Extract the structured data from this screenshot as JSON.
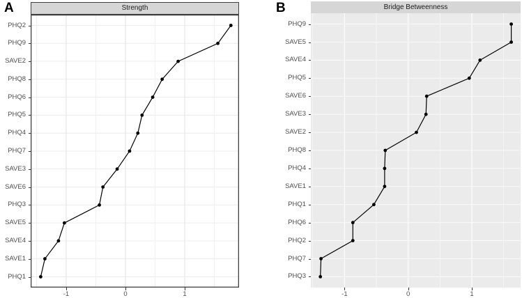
{
  "figure_tags": {
    "panel_a": "A",
    "panel_b": "B"
  },
  "chart_data": [
    {
      "id": "strength",
      "type": "line",
      "title": "Strength",
      "orientation": "horizontal-dot-plot",
      "categories_top_to_bottom": [
        "PHQ2",
        "PHQ9",
        "SAVE2",
        "PHQ8",
        "PHQ6",
        "PHQ5",
        "PHQ4",
        "PHQ7",
        "SAVE3",
        "SAVE6",
        "PHQ3",
        "SAVE5",
        "SAVE4",
        "SAVE1",
        "PHQ1"
      ],
      "values": [
        1.78,
        1.56,
        0.89,
        0.62,
        0.46,
        0.28,
        0.21,
        0.07,
        -0.14,
        -0.38,
        -0.44,
        -1.03,
        -1.13,
        -1.36,
        -1.43
      ],
      "xlabel": "",
      "ylabel": "",
      "xticks": [
        -1,
        0,
        1
      ],
      "xtick_labels": [
        "-1",
        "0",
        "1"
      ],
      "xminor": [
        -1.5,
        -0.5,
        0.5,
        1.5
      ],
      "xlim": [
        -1.6,
        1.918
      ],
      "grid": true,
      "legend": "none",
      "theme": {
        "panel_bg": "#ffffff",
        "panel_border": "#404040",
        "grid_major_v": "#e4e4e4",
        "grid_minor_v": "#f1f1f1",
        "grid_row": "#ececec",
        "strip_bg": "#d6d6d6",
        "strip_text": "#1a1a1a",
        "axis_text": "#4d4d4d",
        "tick_color": "#333333",
        "line_color": "#000000",
        "point_color": "#000000"
      }
    },
    {
      "id": "bridge-betweenness",
      "type": "line",
      "title": "Bridge Betweenness",
      "orientation": "horizontal-dot-plot",
      "categories_top_to_bottom": [
        "PHQ9",
        "SAVE5",
        "SAVE4",
        "PHQ5",
        "SAVE6",
        "SAVE3",
        "SAVE2",
        "PHQ8",
        "PHQ4",
        "SAVE1",
        "PHQ1",
        "PHQ6",
        "PHQ2",
        "PHQ7",
        "PHQ3"
      ],
      "values": [
        1.62,
        1.62,
        1.13,
        0.96,
        0.29,
        0.28,
        0.13,
        -0.36,
        -0.37,
        -0.37,
        -0.54,
        -0.87,
        -0.87,
        -1.37,
        -1.38
      ],
      "xlabel": "",
      "ylabel": "",
      "xticks": [
        -1,
        0,
        1
      ],
      "xtick_labels": [
        "-1",
        "0",
        "1"
      ],
      "xminor": [
        -1.5,
        -0.5,
        0.5,
        1.5
      ],
      "xlim": [
        -1.53,
        1.767
      ],
      "grid": true,
      "legend": "none",
      "theme": {
        "panel_bg": "#ebebeb",
        "panel_border": "none",
        "grid_major_v": "#ffffff",
        "grid_minor_v": "#f7f7f7",
        "grid_row": "#fafafa",
        "strip_bg": "#d6d6d6",
        "strip_text": "#1a1a1a",
        "axis_text": "#4d4d4d",
        "tick_color": "#333333",
        "line_color": "#000000",
        "point_color": "#000000"
      }
    }
  ]
}
